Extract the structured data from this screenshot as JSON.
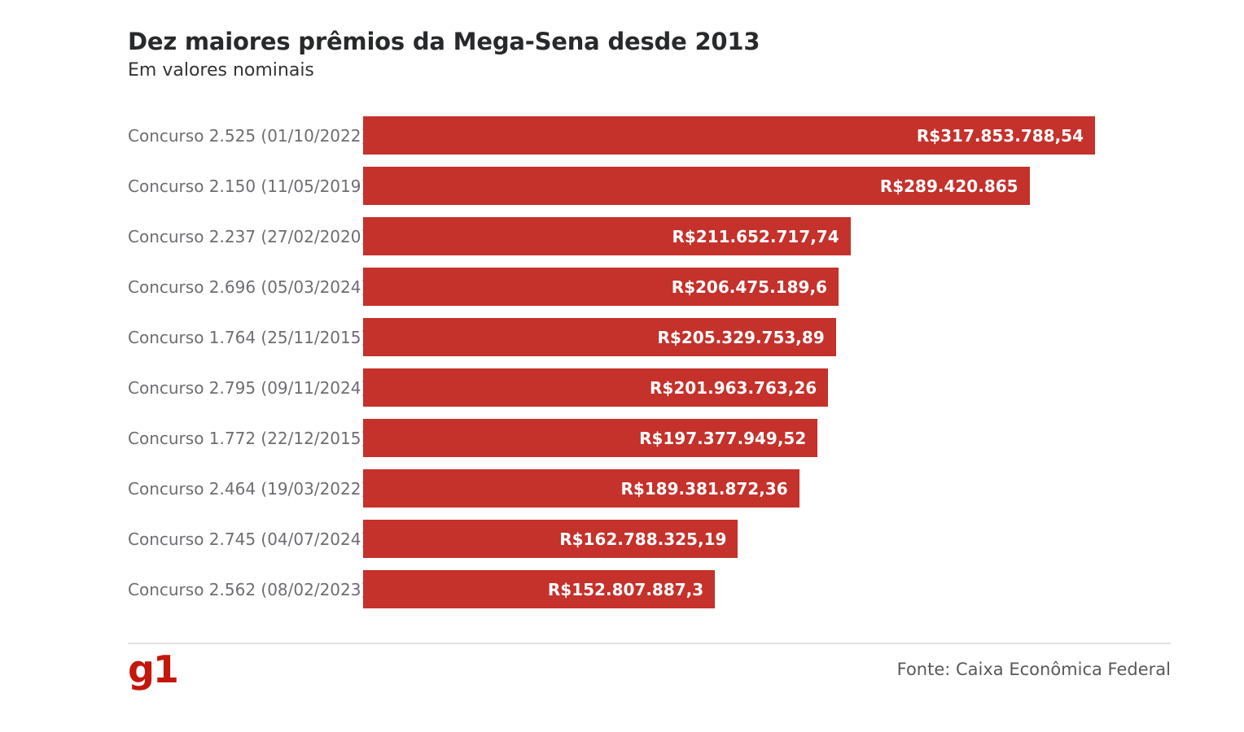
{
  "header": {
    "title": "Dez maiores prêmios da Mega-Sena desde 2013",
    "subtitle": "Em valores nominais"
  },
  "chart_data": {
    "type": "bar",
    "orientation": "horizontal",
    "title": "Dez maiores prêmios da Mega-Sena desde 2013",
    "subtitle": "Em valores nominais",
    "categories": [
      "Concurso 2.525 (01/10/2022)",
      "Concurso 2.150 (11/05/2019)",
      "Concurso 2.237 (27/02/2020)",
      "Concurso 2.696 (05/03/2024)",
      "Concurso 1.764 (25/11/2015)",
      "Concurso 2.795 (09/11/2024)",
      "Concurso 1.772 (22/12/2015)",
      "Concurso 2.464 (19/03/2022)",
      "Concurso 2.745 (04/07/2024)",
      "Concurso 2.562 (08/02/2023)"
    ],
    "values": [
      317853788.54,
      289420865,
      211652717.74,
      206475189.6,
      205329753.89,
      201963763.26,
      197377949.52,
      189381872.36,
      162788325.19,
      152807887.3
    ],
    "value_labels": [
      "R$317.853.788,54",
      "R$289.420.865",
      "R$211.652.717,74",
      "R$206.475.189,6",
      "R$205.329.753,89",
      "R$201.963.763,26",
      "R$197.377.949,52",
      "R$189.381.872,36",
      "R$162.788.325,19",
      "R$152.807.887,3"
    ],
    "xlim": [
      0,
      317853788.54
    ],
    "grid": false,
    "legend": false,
    "bar_color": "#c5312b",
    "value_text_color": "#ffffff"
  },
  "footer": {
    "logo_text": "g1",
    "logo_color": "#c4170c",
    "source": "Fonte: Caixa Econômica Federal"
  }
}
